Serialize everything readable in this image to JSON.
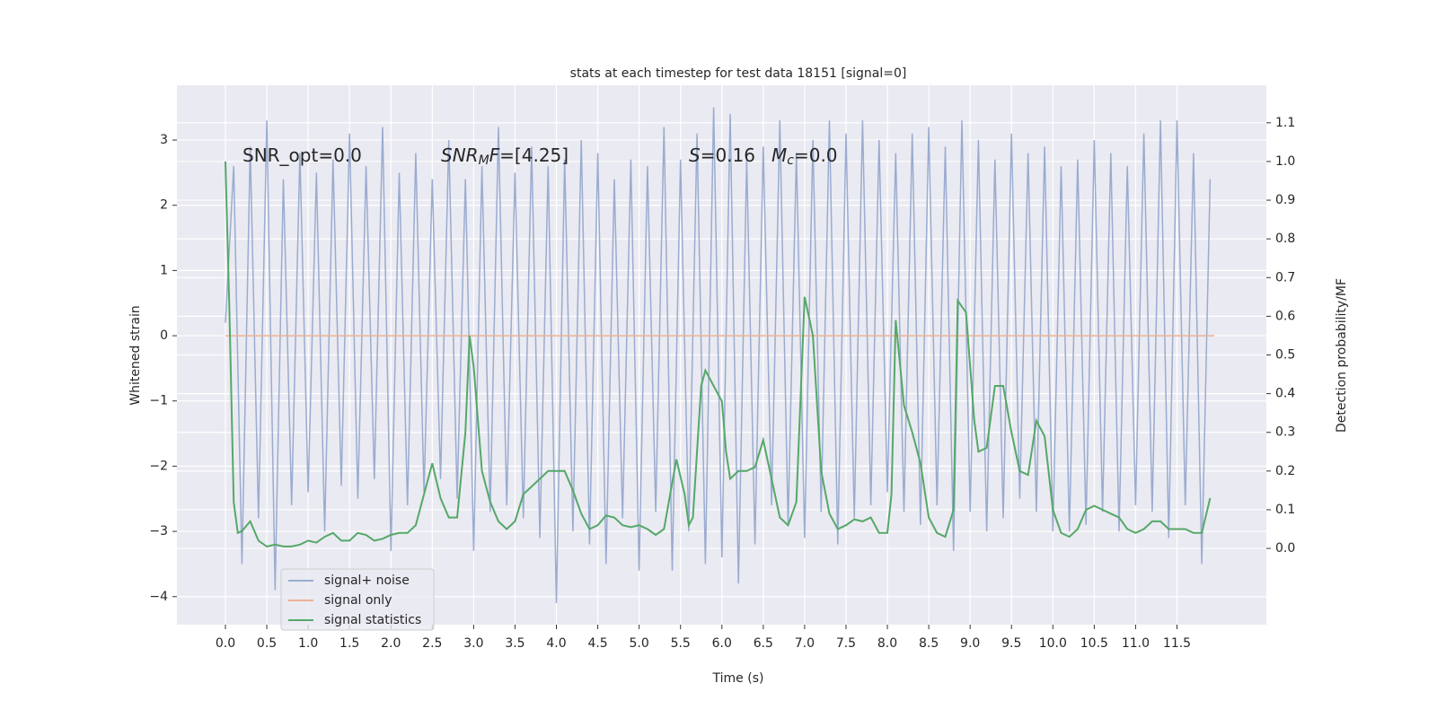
{
  "chart_data": {
    "type": "line",
    "title": "stats at each timestep for test data 18151 [signal=0]",
    "xlabel": "Time (s)",
    "ylabel": "Whitened strain",
    "y2label": "Detection probability/MF",
    "xlim": [
      -0.586,
      12.58
    ],
    "ylim": [
      -4.43,
      3.84
    ],
    "y2lim": [
      -0.197,
      1.197
    ],
    "xticks": [
      {
        "value": 0,
        "label": "0.0"
      },
      {
        "value": 0.5,
        "label": "0.5"
      },
      {
        "value": 1,
        "label": "1.0"
      },
      {
        "value": 1.5,
        "label": "1.5"
      },
      {
        "value": 2,
        "label": "2.0"
      },
      {
        "value": 2.5,
        "label": "2.5"
      },
      {
        "value": 3,
        "label": "3.0"
      },
      {
        "value": 3.5,
        "label": "3.5"
      },
      {
        "value": 4,
        "label": "4.0"
      },
      {
        "value": 4.5,
        "label": "4.5"
      },
      {
        "value": 5,
        "label": "5.0"
      },
      {
        "value": 5.5,
        "label": "5.5"
      },
      {
        "value": 6,
        "label": "6.0"
      },
      {
        "value": 6.5,
        "label": "6.5"
      },
      {
        "value": 7,
        "label": "7.0"
      },
      {
        "value": 7.5,
        "label": "7.5"
      },
      {
        "value": 8,
        "label": "8.0"
      },
      {
        "value": 8.5,
        "label": "8.5"
      },
      {
        "value": 9,
        "label": "9.0"
      },
      {
        "value": 9.5,
        "label": "9.5"
      },
      {
        "value": 10,
        "label": "10.0"
      },
      {
        "value": 10.5,
        "label": "10.5"
      },
      {
        "value": 11,
        "label": "11.0"
      },
      {
        "value": 11.5,
        "label": "11.5"
      }
    ],
    "yticks": [
      {
        "value": -4,
        "label": "−4"
      },
      {
        "value": -3,
        "label": "−3"
      },
      {
        "value": -2,
        "label": "−2"
      },
      {
        "value": -1,
        "label": "−1"
      },
      0,
      1,
      2,
      3
    ],
    "y2ticks": [
      {
        "value": 0,
        "label": "0.0"
      },
      {
        "value": 0.1,
        "label": "0.1"
      },
      {
        "value": 0.2,
        "label": "0.2"
      },
      {
        "value": 0.3,
        "label": "0.3"
      },
      {
        "value": 0.4,
        "label": "0.4"
      },
      {
        "value": 0.5,
        "label": "0.5"
      },
      {
        "value": 0.6,
        "label": "0.6"
      },
      {
        "value": 0.7,
        "label": "0.7"
      },
      {
        "value": 0.8,
        "label": "0.8"
      },
      {
        "value": 0.9,
        "label": "0.9"
      },
      {
        "value": 1,
        "label": "1.0"
      },
      {
        "value": 1.1,
        "label": "1.1"
      }
    ],
    "grid": true,
    "legend_loc": "lower left",
    "annotations": [
      [
        "SNR_opt=0.0"
      ],
      [
        "SNR",
        "M",
        "F",
        "=[4.25]"
      ],
      [
        "S",
        "=0.16"
      ],
      [
        "M",
        "c",
        "=0.0"
      ]
    ],
    "series": [
      {
        "name": "signal+ noise",
        "color": "#9aaccf",
        "x": [
          0,
          0.1,
          0.2,
          0.3,
          0.4,
          0.5,
          0.6,
          0.7,
          0.8,
          0.9,
          1,
          1.1,
          1.2,
          1.3,
          1.4,
          1.5,
          1.6,
          1.7,
          1.8,
          1.9,
          2,
          2.1,
          2.2,
          2.3,
          2.4,
          2.5,
          2.6,
          2.7,
          2.8,
          2.9,
          3,
          3.1,
          3.2,
          3.3,
          3.4,
          3.5,
          3.6,
          3.7,
          3.8,
          3.9,
          4,
          4.1,
          4.2,
          4.3,
          4.4,
          4.5,
          4.6,
          4.7,
          4.8,
          4.9,
          5,
          5.1,
          5.2,
          5.3,
          5.4,
          5.5,
          5.6,
          5.7,
          5.8,
          5.9,
          6,
          6.1,
          6.2,
          6.3,
          6.4,
          6.5,
          6.6,
          6.7,
          6.8,
          6.9,
          7,
          7.1,
          7.2,
          7.3,
          7.4,
          7.5,
          7.6,
          7.7,
          7.8,
          7.9,
          8,
          8.1,
          8.2,
          8.3,
          8.4,
          8.5,
          8.6,
          8.7,
          8.8,
          8.9,
          9,
          9.1,
          9.2,
          9.3,
          9.4,
          9.5,
          9.6,
          9.7,
          9.8,
          9.9,
          10,
          10.1,
          10.2,
          10.3,
          10.4,
          10.5,
          10.6,
          10.7,
          10.8,
          10.9,
          11,
          11.1,
          11.2,
          11.3,
          11.4,
          11.5,
          11.6,
          11.7,
          11.8,
          11.9
        ],
        "values": [
          0.2,
          2.6,
          -3.5,
          2.9,
          -2.8,
          3.3,
          -3.9,
          2.4,
          -2.6,
          2.8,
          -2.4,
          2.5,
          -3.0,
          2.7,
          -2.3,
          3.1,
          -2.5,
          2.6,
          -2.2,
          3.2,
          -3.3,
          2.5,
          -2.6,
          2.8,
          -2.4,
          2.4,
          -2.2,
          3.0,
          -2.5,
          2.4,
          -3.3,
          2.6,
          -2.7,
          3.2,
          -2.6,
          2.5,
          -2.8,
          2.9,
          -3.1,
          2.6,
          -4.1,
          2.7,
          -3.0,
          3.0,
          -3.2,
          2.8,
          -3.5,
          2.4,
          -2.8,
          2.7,
          -3.6,
          2.6,
          -2.7,
          3.2,
          -3.6,
          2.7,
          -3.0,
          3.1,
          -3.5,
          3.5,
          -3.4,
          3.4,
          -3.8,
          2.7,
          -3.2,
          2.9,
          -2.6,
          3.3,
          -2.9,
          2.8,
          -3.1,
          3.0,
          -2.7,
          3.3,
          -3.2,
          3.1,
          -2.8,
          3.3,
          -2.6,
          3.0,
          -2.4,
          2.8,
          -2.7,
          3.1,
          -2.9,
          3.2,
          -2.6,
          2.9,
          -3.3,
          3.3,
          -2.7,
          3.0,
          -3.0,
          2.7,
          -2.8,
          3.1,
          -2.5,
          2.8,
          -2.7,
          2.9,
          -3.0,
          2.6,
          -3.0,
          2.7,
          -2.9,
          3.0,
          -2.7,
          2.8,
          -3.0,
          2.6,
          -2.6,
          3.1,
          -2.7,
          3.3,
          -3.1,
          3.3,
          -2.6,
          2.8,
          -3.5,
          2.4
        ]
      },
      {
        "name": "signal only",
        "color": "#eeb294",
        "x": [
          0,
          11.95
        ],
        "values": [
          0,
          0
        ]
      },
      {
        "name": "signal statistics",
        "color": "#55a868",
        "axis": "y2",
        "x": [
          0,
          0.05,
          0.1,
          0.15,
          0.2,
          0.3,
          0.4,
          0.5,
          0.6,
          0.7,
          0.8,
          0.9,
          1,
          1.1,
          1.2,
          1.3,
          1.4,
          1.5,
          1.6,
          1.7,
          1.8,
          1.9,
          2,
          2.1,
          2.2,
          2.3,
          2.4,
          2.5,
          2.6,
          2.7,
          2.8,
          2.9,
          2.95,
          3,
          3.1,
          3.2,
          3.3,
          3.4,
          3.5,
          3.6,
          3.7,
          3.8,
          3.9,
          4,
          4.1,
          4.2,
          4.3,
          4.4,
          4.5,
          4.6,
          4.7,
          4.8,
          4.9,
          5,
          5.1,
          5.2,
          5.3,
          5.45,
          5.55,
          5.6,
          5.65,
          5.75,
          5.8,
          5.9,
          6,
          6.05,
          6.1,
          6.2,
          6.3,
          6.4,
          6.5,
          6.6,
          6.7,
          6.8,
          6.9,
          7,
          7.1,
          7.2,
          7.3,
          7.4,
          7.5,
          7.6,
          7.7,
          7.8,
          7.9,
          8,
          8.05,
          8.1,
          8.2,
          8.3,
          8.4,
          8.5,
          8.6,
          8.7,
          8.8,
          8.85,
          8.95,
          9.05,
          9.1,
          9.2,
          9.3,
          9.4,
          9.5,
          9.6,
          9.7,
          9.8,
          9.9,
          10,
          10.1,
          10.2,
          10.3,
          10.4,
          10.5,
          10.6,
          10.7,
          10.8,
          10.9,
          11,
          11.1,
          11.2,
          11.3,
          11.4,
          11.5,
          11.6,
          11.7,
          11.8,
          11.9
        ],
        "values": [
          1.0,
          0.6,
          0.12,
          0.04,
          0.045,
          0.07,
          0.02,
          0.005,
          0.01,
          0.005,
          0.005,
          0.01,
          0.02,
          0.015,
          0.03,
          0.04,
          0.02,
          0.02,
          0.04,
          0.035,
          0.02,
          0.025,
          0.035,
          0.04,
          0.04,
          0.06,
          0.14,
          0.22,
          0.13,
          0.08,
          0.08,
          0.3,
          0.55,
          0.47,
          0.2,
          0.12,
          0.07,
          0.05,
          0.07,
          0.14,
          0.16,
          0.18,
          0.2,
          0.2,
          0.2,
          0.15,
          0.09,
          0.05,
          0.06,
          0.085,
          0.08,
          0.06,
          0.055,
          0.06,
          0.05,
          0.035,
          0.05,
          0.23,
          0.14,
          0.06,
          0.08,
          0.42,
          0.46,
          0.42,
          0.38,
          0.25,
          0.18,
          0.2,
          0.2,
          0.21,
          0.28,
          0.18,
          0.08,
          0.06,
          0.12,
          0.65,
          0.55,
          0.2,
          0.09,
          0.05,
          0.06,
          0.075,
          0.07,
          0.08,
          0.04,
          0.04,
          0.14,
          0.59,
          0.37,
          0.3,
          0.22,
          0.08,
          0.04,
          0.03,
          0.1,
          0.64,
          0.61,
          0.33,
          0.25,
          0.26,
          0.42,
          0.42,
          0.3,
          0.2,
          0.19,
          0.33,
          0.29,
          0.1,
          0.04,
          0.03,
          0.05,
          0.1,
          0.11,
          0.1,
          0.09,
          0.08,
          0.05,
          0.04,
          0.05,
          0.07,
          0.07,
          0.05,
          0.05,
          0.05,
          0.04,
          0.04,
          0.13
        ]
      }
    ]
  }
}
